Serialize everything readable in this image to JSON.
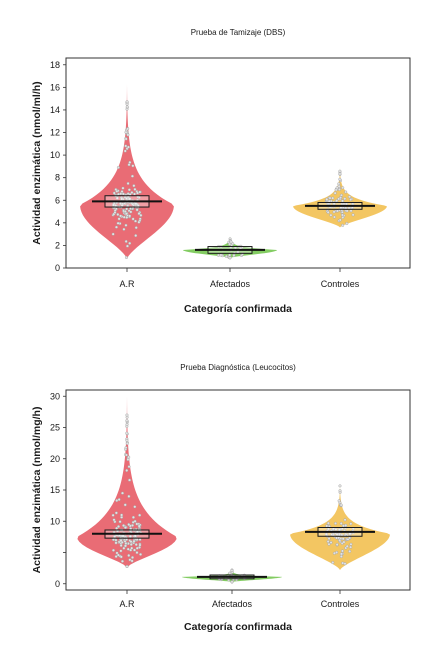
{
  "chart_data": [
    {
      "type": "violin",
      "title": "Prueba de Tamizaje (DBS)",
      "xlabel": "Categoría confirmada",
      "ylabel": "Actividad enzimática (nmol/ml/h)",
      "categories": [
        "A.R",
        "Afectados",
        "Controles"
      ],
      "ylim": [
        0,
        18.6
      ],
      "yticks": [
        0,
        2,
        4,
        6,
        8,
        10,
        12,
        14,
        16,
        18
      ],
      "series": [
        {
          "category": "A.R",
          "color": "#e8646e",
          "median": 5.9,
          "box": [
            5.4,
            6.4
          ],
          "min": 0.8,
          "max": 16.3,
          "mode": 5.6
        },
        {
          "category": "Afectados",
          "color": "#7cc95a",
          "median": 1.6,
          "box": [
            1.3,
            1.9
          ],
          "min": 0.9,
          "max": 2.8,
          "mode": 1.6
        },
        {
          "category": "Controles",
          "color": "#f2c35a",
          "median": 5.5,
          "box": [
            5.2,
            5.8
          ],
          "min": 3.6,
          "max": 8.9,
          "mode": 5.5
        }
      ]
    },
    {
      "type": "violin",
      "title": "Prueba Diagnóstica (Leucocitos)",
      "xlabel": "Categoría confirmada",
      "ylabel": "Actividad enzimática (nmol/mg/h)",
      "categories": [
        "A.R",
        "Afectados",
        "Controles"
      ],
      "ylim": [
        -1,
        31
      ],
      "yticks": [
        0,
        5,
        10,
        15,
        20,
        25,
        30
      ],
      "ytick_labels": [
        "0",
        "",
        "10",
        "15",
        "20",
        "25",
        "30"
      ],
      "series": [
        {
          "category": "A.R",
          "color": "#e8646e",
          "median": 8.0,
          "box": [
            7.3,
            8.6
          ],
          "min": 2.6,
          "max": 30.0,
          "mode": 7.5
        },
        {
          "category": "Afectados",
          "color": "#7cc95a",
          "median": 1.1,
          "box": [
            0.8,
            1.4
          ],
          "min": 0.3,
          "max": 2.2,
          "mode": 1.1
        },
        {
          "category": "Controles",
          "color": "#f2c35a",
          "median": 8.3,
          "box": [
            7.6,
            9.0
          ],
          "min": 2.2,
          "max": 15.8,
          "mode": 8.0
        }
      ]
    }
  ]
}
